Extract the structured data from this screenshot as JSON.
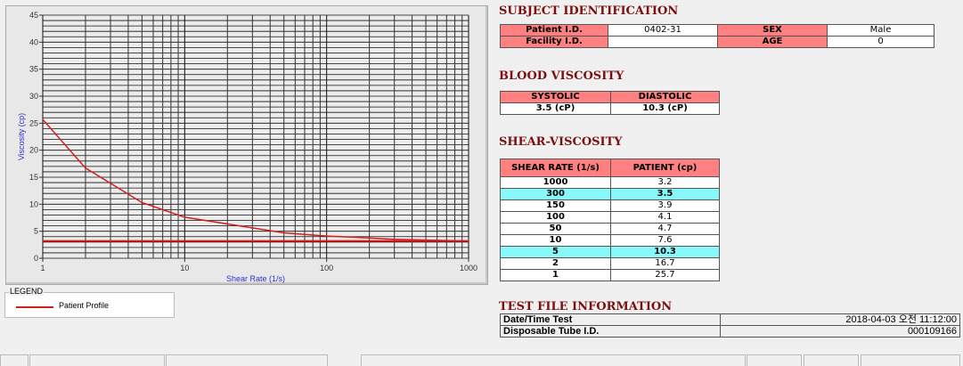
{
  "chart_data": {
    "type": "line",
    "xlabel": "Shear Rate (1/s)",
    "ylabel": "Viscosity (cp)",
    "xscale": "log",
    "xlim": [
      1,
      1000
    ],
    "ylim": [
      0,
      45
    ],
    "xticks": [
      "1",
      "10",
      "100",
      "1000"
    ],
    "yticks": [
      "0",
      "5",
      "10",
      "15",
      "20",
      "25",
      "30",
      "35",
      "40",
      "45"
    ],
    "grid": true,
    "series": [
      {
        "name": "Patient Profile",
        "color": "#d02020",
        "x": [
          1,
          2,
          5,
          10,
          50,
          100,
          150,
          300,
          1000
        ],
        "y": [
          25.7,
          16.7,
          10.3,
          7.6,
          4.7,
          4.1,
          3.9,
          3.5,
          3.2
        ]
      }
    ],
    "baseline": 3.2,
    "legend_title": "LEGEND",
    "legend_placement": "bottom-left"
  },
  "subject": {
    "title": "SUBJECT IDENTIFICATION",
    "patient_id_label": "Patient I.D.",
    "patient_id": "0402-31",
    "sex_label": "SEX",
    "sex": "Male",
    "facility_label": "Facility I.D.",
    "facility": "",
    "age_label": "AGE",
    "age": "0"
  },
  "blood": {
    "title": "BLOOD VISCOSITY",
    "systolic_label": "SYSTOLIC",
    "diastolic_label": "DIASTOLIC",
    "systolic": "3.5 (cP)",
    "diastolic": "10.3 (cP)"
  },
  "shear": {
    "title": "SHEAR-VISCOSITY",
    "col1": "SHEAR RATE (1/s)",
    "col2": "PATIENT (cp)",
    "rows": [
      [
        "1000",
        "3.2"
      ],
      [
        "300",
        "3.5"
      ],
      [
        "150",
        "3.9"
      ],
      [
        "100",
        "4.1"
      ],
      [
        "50",
        "4.7"
      ],
      [
        "10",
        "7.6"
      ],
      [
        "5",
        "10.3"
      ],
      [
        "2",
        "16.7"
      ],
      [
        "1",
        "25.7"
      ]
    ],
    "highlight": [
      "300",
      "5"
    ],
    "highlight_color": "#88f8f8"
  },
  "testfile": {
    "title": "TEST FILE INFORMATION",
    "date_label": "Date/Time Test",
    "date": "2018-04-03  오전 11:12:00",
    "tube_label": "Disposable Tube I.D.",
    "tube": "000109166"
  },
  "colors": {
    "header_red": "#ff8080",
    "title": "#7b1010"
  }
}
